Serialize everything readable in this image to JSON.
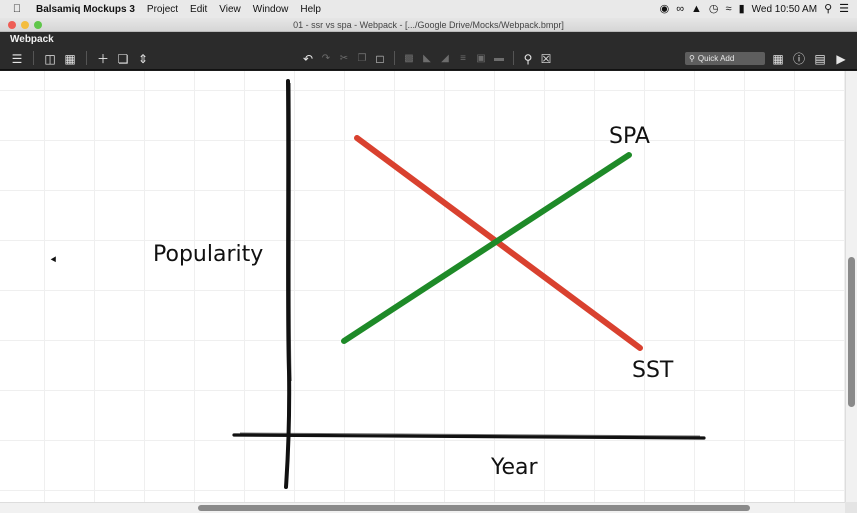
{
  "menubar": {
    "app_name": "Balsamiq Mockups 3",
    "items": [
      "Project",
      "Edit",
      "View",
      "Window",
      "Help"
    ],
    "clock": "Wed 10:50 AM"
  },
  "window": {
    "title": "01 - ssr vs spa - Webpack - [.../Google Drive/Mocks/Webpack.bmpr]"
  },
  "project": {
    "name": "Webpack"
  },
  "toolbar": {
    "quick_add_placeholder": "Quick Add"
  },
  "canvas": {
    "label_y": "Popularity",
    "label_x": "Year",
    "label_spa": "SPA",
    "label_sst": "SST",
    "colors": {
      "spa": "#1e8a28",
      "sst": "#d9412f",
      "axis": "#111111"
    }
  }
}
